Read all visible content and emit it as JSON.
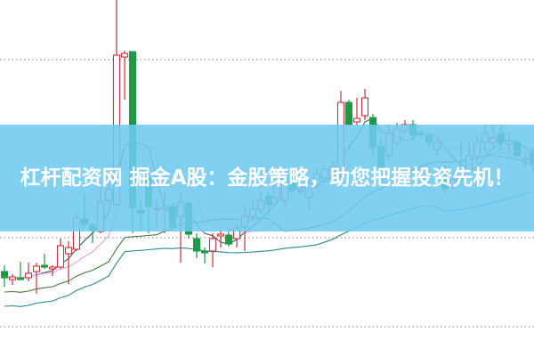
{
  "banner": {
    "title": "杠杆配资网 掘金A股：金股策略，助您把握投资先机！",
    "background_color": "#6ec9f0"
  },
  "chart_data": {
    "type": "candlestick",
    "grid": "horizontal dotted",
    "colors": {
      "up": "#d0303a",
      "down": "#1e9a46",
      "ma": [
        "#3d5c70",
        "#e8a0e8",
        "#3f7a3a",
        "#2a8a90"
      ]
    },
    "candles": [
      [
        23.75,
        25.5,
        19.5,
        22
      ],
      [
        21.5,
        23,
        20,
        22.25
      ],
      [
        22,
        26.5,
        21.5,
        21.5
      ],
      [
        22,
        26.25,
        21,
        23.25
      ],
      [
        23.75,
        26.25,
        17.5,
        25.25
      ],
      [
        25.5,
        28.75,
        24.5,
        25
      ],
      [
        24.5,
        25.5,
        22.5,
        25
      ],
      [
        25,
        33,
        24.5,
        31
      ],
      [
        28.75,
        32.25,
        20.25,
        30.5
      ],
      [
        30,
        40,
        29.5,
        38.75
      ],
      [
        38.5,
        45.5,
        35.75,
        37
      ],
      [
        36.75,
        37.5,
        31.75,
        35.5
      ],
      [
        35,
        47.5,
        34.5,
        43.25
      ],
      [
        43.75,
        50,
        42.5,
        46.75
      ],
      [
        42.5,
        100,
        42,
        84.5
      ],
      [
        84,
        85.75,
        72,
        85
      ],
      [
        85.5,
        85.5,
        34.5,
        41.75
      ],
      [
        41,
        44,
        35,
        40
      ],
      [
        50,
        51.25,
        34.5,
        42
      ],
      [
        41.5,
        43.75,
        36.25,
        41.5
      ],
      [
        41.25,
        46.25,
        34.5,
        42
      ],
      [
        42,
        43,
        35.5,
        36.25
      ],
      [
        39.25,
        46.25,
        26.25,
        43.25
      ],
      [
        43,
        43.75,
        33,
        34.25
      ],
      [
        33,
        34.5,
        27.5,
        29.5
      ],
      [
        29.5,
        30.5,
        26,
        29
      ],
      [
        29.5,
        34.5,
        25,
        33
      ],
      [
        33.75,
        35.5,
        30.5,
        34.25
      ],
      [
        34,
        35.5,
        30.75,
        31.5
      ],
      [
        33,
        37.5,
        30.5,
        36
      ],
      [
        36.25,
        42,
        29.5,
        39.25
      ],
      [
        39.25,
        43.75,
        38,
        41.25
      ],
      [
        41.25,
        46.25,
        40,
        43.75
      ],
      [
        45,
        46,
        41,
        42.5
      ],
      [
        44.5,
        50,
        43,
        48.75
      ],
      [
        43.75,
        53.5,
        42,
        51
      ],
      [
        50.75,
        52,
        46.25,
        46.75
      ],
      [
        46.5,
        50,
        45.5,
        46.5
      ],
      [
        44.5,
        50,
        41,
        48.5
      ],
      [
        48,
        53,
        47,
        51.25
      ],
      [
        50,
        53.75,
        48.75,
        52.5
      ],
      [
        52,
        55,
        50,
        53.25
      ],
      [
        51.25,
        74.5,
        50,
        71.25
      ],
      [
        71.25,
        72,
        64.5,
        65
      ],
      [
        65.75,
        72.5,
        65,
        66.75
      ],
      [
        67.5,
        75,
        66.25,
        72.5
      ],
      [
        67,
        68,
        56.25,
        58.75
      ],
      [
        58.75,
        61.25,
        51.25,
        52.5
      ],
      [
        56.25,
        65,
        55,
        62.5
      ],
      [
        60,
        65.5,
        58.75,
        63.75
      ],
      [
        63.5,
        66.25,
        62.5,
        65
      ],
      [
        65,
        66.25,
        60.5,
        62
      ],
      [
        62.5,
        63.75,
        61.25,
        62.25
      ],
      [
        62,
        63,
        58.75,
        60
      ],
      [
        58,
        61.25,
        56.25,
        60
      ],
      [
        52.5,
        53.75,
        45.5,
        47
      ],
      [
        48,
        51.25,
        47,
        49.5
      ],
      [
        50,
        60,
        48.75,
        51.75
      ],
      [
        52,
        60,
        51.25,
        56.25
      ],
      [
        56.25,
        62.5,
        53.75,
        60
      ],
      [
        60,
        65,
        57.5,
        62.5
      ],
      [
        60,
        65,
        58.75,
        61.25
      ],
      [
        62.5,
        65,
        57.5,
        60
      ],
      [
        59.5,
        63,
        57,
        60.5
      ],
      [
        60,
        61.25,
        55,
        56.25
      ],
      [
        55.5,
        57,
        53,
        55.5
      ],
      [
        57,
        58,
        52,
        53.75
      ]
    ]
  }
}
